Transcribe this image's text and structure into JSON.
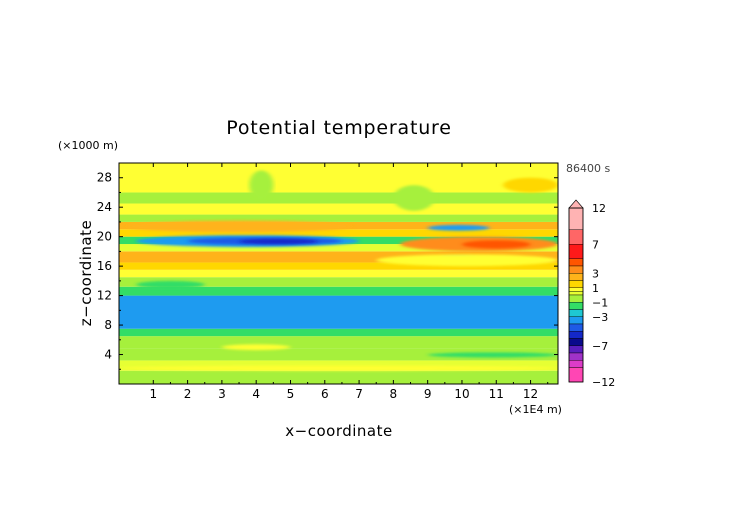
{
  "chart_data": {
    "type": "heatmap",
    "title": "Potential temperature",
    "xlabel": "x−coordinate",
    "ylabel": "z−coordinate",
    "x_unit": "(×1E4 m)",
    "y_unit": "(×1000 m)",
    "time_label": "86400 s",
    "xlim": [
      0,
      12.8
    ],
    "ylim": [
      0,
      30
    ],
    "x_ticks": [
      "1",
      "2",
      "3",
      "4",
      "5",
      "6",
      "7",
      "8",
      "9",
      "10",
      "11",
      "12"
    ],
    "y_ticks": [
      "4",
      "8",
      "12",
      "16",
      "20",
      "24",
      "28"
    ],
    "colorbar": {
      "labels": [
        "12",
        "7",
        "3",
        "1",
        "−1",
        "−3",
        "−7",
        "−12"
      ],
      "bins": [
        {
          "lo": 9,
          "hi": 12,
          "color": "#ffb3b3"
        },
        {
          "lo": 7,
          "hi": 9,
          "color": "#ff6666"
        },
        {
          "lo": 5,
          "hi": 7,
          "color": "#ff1a1a"
        },
        {
          "lo": 4,
          "hi": 5,
          "color": "#ff5500"
        },
        {
          "lo": 3,
          "hi": 4,
          "color": "#ff8c1a"
        },
        {
          "lo": 2,
          "hi": 3,
          "color": "#ffb31a"
        },
        {
          "lo": 1,
          "hi": 2,
          "color": "#ffd700"
        },
        {
          "lo": 0.5,
          "hi": 1,
          "color": "#ffff33"
        },
        {
          "lo": 0,
          "hi": 0.5,
          "color": "#e6ff33"
        },
        {
          "lo": -1,
          "hi": 0,
          "color": "#a6f03c"
        },
        {
          "lo": -2,
          "hi": -1,
          "color": "#33dd66"
        },
        {
          "lo": -3,
          "hi": -2,
          "color": "#1ec8d2"
        },
        {
          "lo": -4,
          "hi": -3,
          "color": "#1e9bf0"
        },
        {
          "lo": -5,
          "hi": -4,
          "color": "#1e5ae6"
        },
        {
          "lo": -6,
          "hi": -5,
          "color": "#1428c8"
        },
        {
          "lo": -7,
          "hi": -6,
          "color": "#0a0a8c"
        },
        {
          "lo": -8,
          "hi": -7,
          "color": "#5a1ebe"
        },
        {
          "lo": -9,
          "hi": -8,
          "color": "#a032c8"
        },
        {
          "lo": -10,
          "hi": -9,
          "color": "#dc3cc8"
        },
        {
          "lo": -12,
          "hi": -10,
          "color": "#ff46b4"
        }
      ]
    },
    "z_range": [
      -12,
      12
    ],
    "layers": [
      {
        "z": [
          0,
          1.8
        ],
        "value": -0.3
      },
      {
        "z": [
          1.8,
          3.2
        ],
        "value": 0.3
      },
      {
        "z": [
          3.2,
          4.8
        ],
        "value": -0.8
      },
      {
        "z": [
          4.8,
          6.5
        ],
        "value": -0.2
      },
      {
        "z": [
          6.5,
          7.5
        ],
        "value": -1.5
      },
      {
        "z": [
          7.5,
          12.0
        ],
        "value": -3.5
      },
      {
        "z": [
          12.0,
          13.2
        ],
        "value": -1.5
      },
      {
        "z": [
          13.2,
          14.5
        ],
        "value": -0.4
      },
      {
        "z": [
          14.5,
          15.5
        ],
        "value": 0.5
      },
      {
        "z": [
          15.5,
          16.5
        ],
        "value": 1.5
      },
      {
        "z": [
          16.5,
          18.0
        ],
        "value": 2.5
      },
      {
        "z": [
          18.0,
          19.0
        ],
        "value": 0.4
      },
      {
        "z": [
          19.0,
          20.0
        ],
        "value": -1.8
      },
      {
        "z": [
          20.0,
          21.0
        ],
        "value": 1.0
      },
      {
        "z": [
          21.0,
          22.0
        ],
        "value": 2.0
      },
      {
        "z": [
          22.0,
          23.0
        ],
        "value": -0.2
      },
      {
        "z": [
          23.0,
          24.5
        ],
        "value": 0.5
      },
      {
        "z": [
          24.5,
          26.0
        ],
        "value": -0.3
      },
      {
        "z": [
          26.0,
          30.0
        ],
        "value": 0.6
      }
    ],
    "features": [
      {
        "x": [
          0.5,
          7.0
        ],
        "z": [
          18.6,
          20.2
        ],
        "value": -3.5
      },
      {
        "x": [
          2.0,
          6.5
        ],
        "z": [
          18.9,
          19.9
        ],
        "value": -4.5
      },
      {
        "x": [
          3.5,
          5.8
        ],
        "z": [
          19.0,
          19.7
        ],
        "value": -5.5
      },
      {
        "x": [
          8.2,
          12.8
        ],
        "z": [
          18.0,
          20.0
        ],
        "value": 3.5
      },
      {
        "x": [
          10.0,
          12.0
        ],
        "z": [
          18.4,
          19.5
        ],
        "value": 4.5
      },
      {
        "x": [
          9.0,
          10.8
        ],
        "z": [
          20.8,
          21.6
        ],
        "value": -3.5
      },
      {
        "x": [
          9.3,
          10.5
        ],
        "z": [
          16.5,
          17.3
        ],
        "value": -3.5
      },
      {
        "x": [
          7.5,
          12.8
        ],
        "z": [
          16.0,
          17.6
        ],
        "value": 0.6
      },
      {
        "x": [
          0.2,
          6.8
        ],
        "z": [
          20.6,
          22.2
        ],
        "value": 2.5
      },
      {
        "x": [
          3.0,
          5.0
        ],
        "z": [
          4.6,
          5.4
        ],
        "value": 0.8
      },
      {
        "x": [
          0.0,
          12.8
        ],
        "z": [
          1.8,
          2.5
        ],
        "value": 0.8
      },
      {
        "x": [
          9.0,
          12.8
        ],
        "z": [
          3.6,
          4.3
        ],
        "value": -1.5
      },
      {
        "x": [
          3.8,
          4.5
        ],
        "z": [
          25.0,
          29.0
        ],
        "value": -0.6
      },
      {
        "x": [
          8.0,
          9.2
        ],
        "z": [
          23.5,
          27.0
        ],
        "value": -0.6
      },
      {
        "x": [
          11.2,
          12.8
        ],
        "z": [
          26.0,
          28.0
        ],
        "value": 1.0
      },
      {
        "x": [
          0.5,
          2.5
        ],
        "z": [
          13.0,
          14.0
        ],
        "value": -2.0
      }
    ]
  }
}
